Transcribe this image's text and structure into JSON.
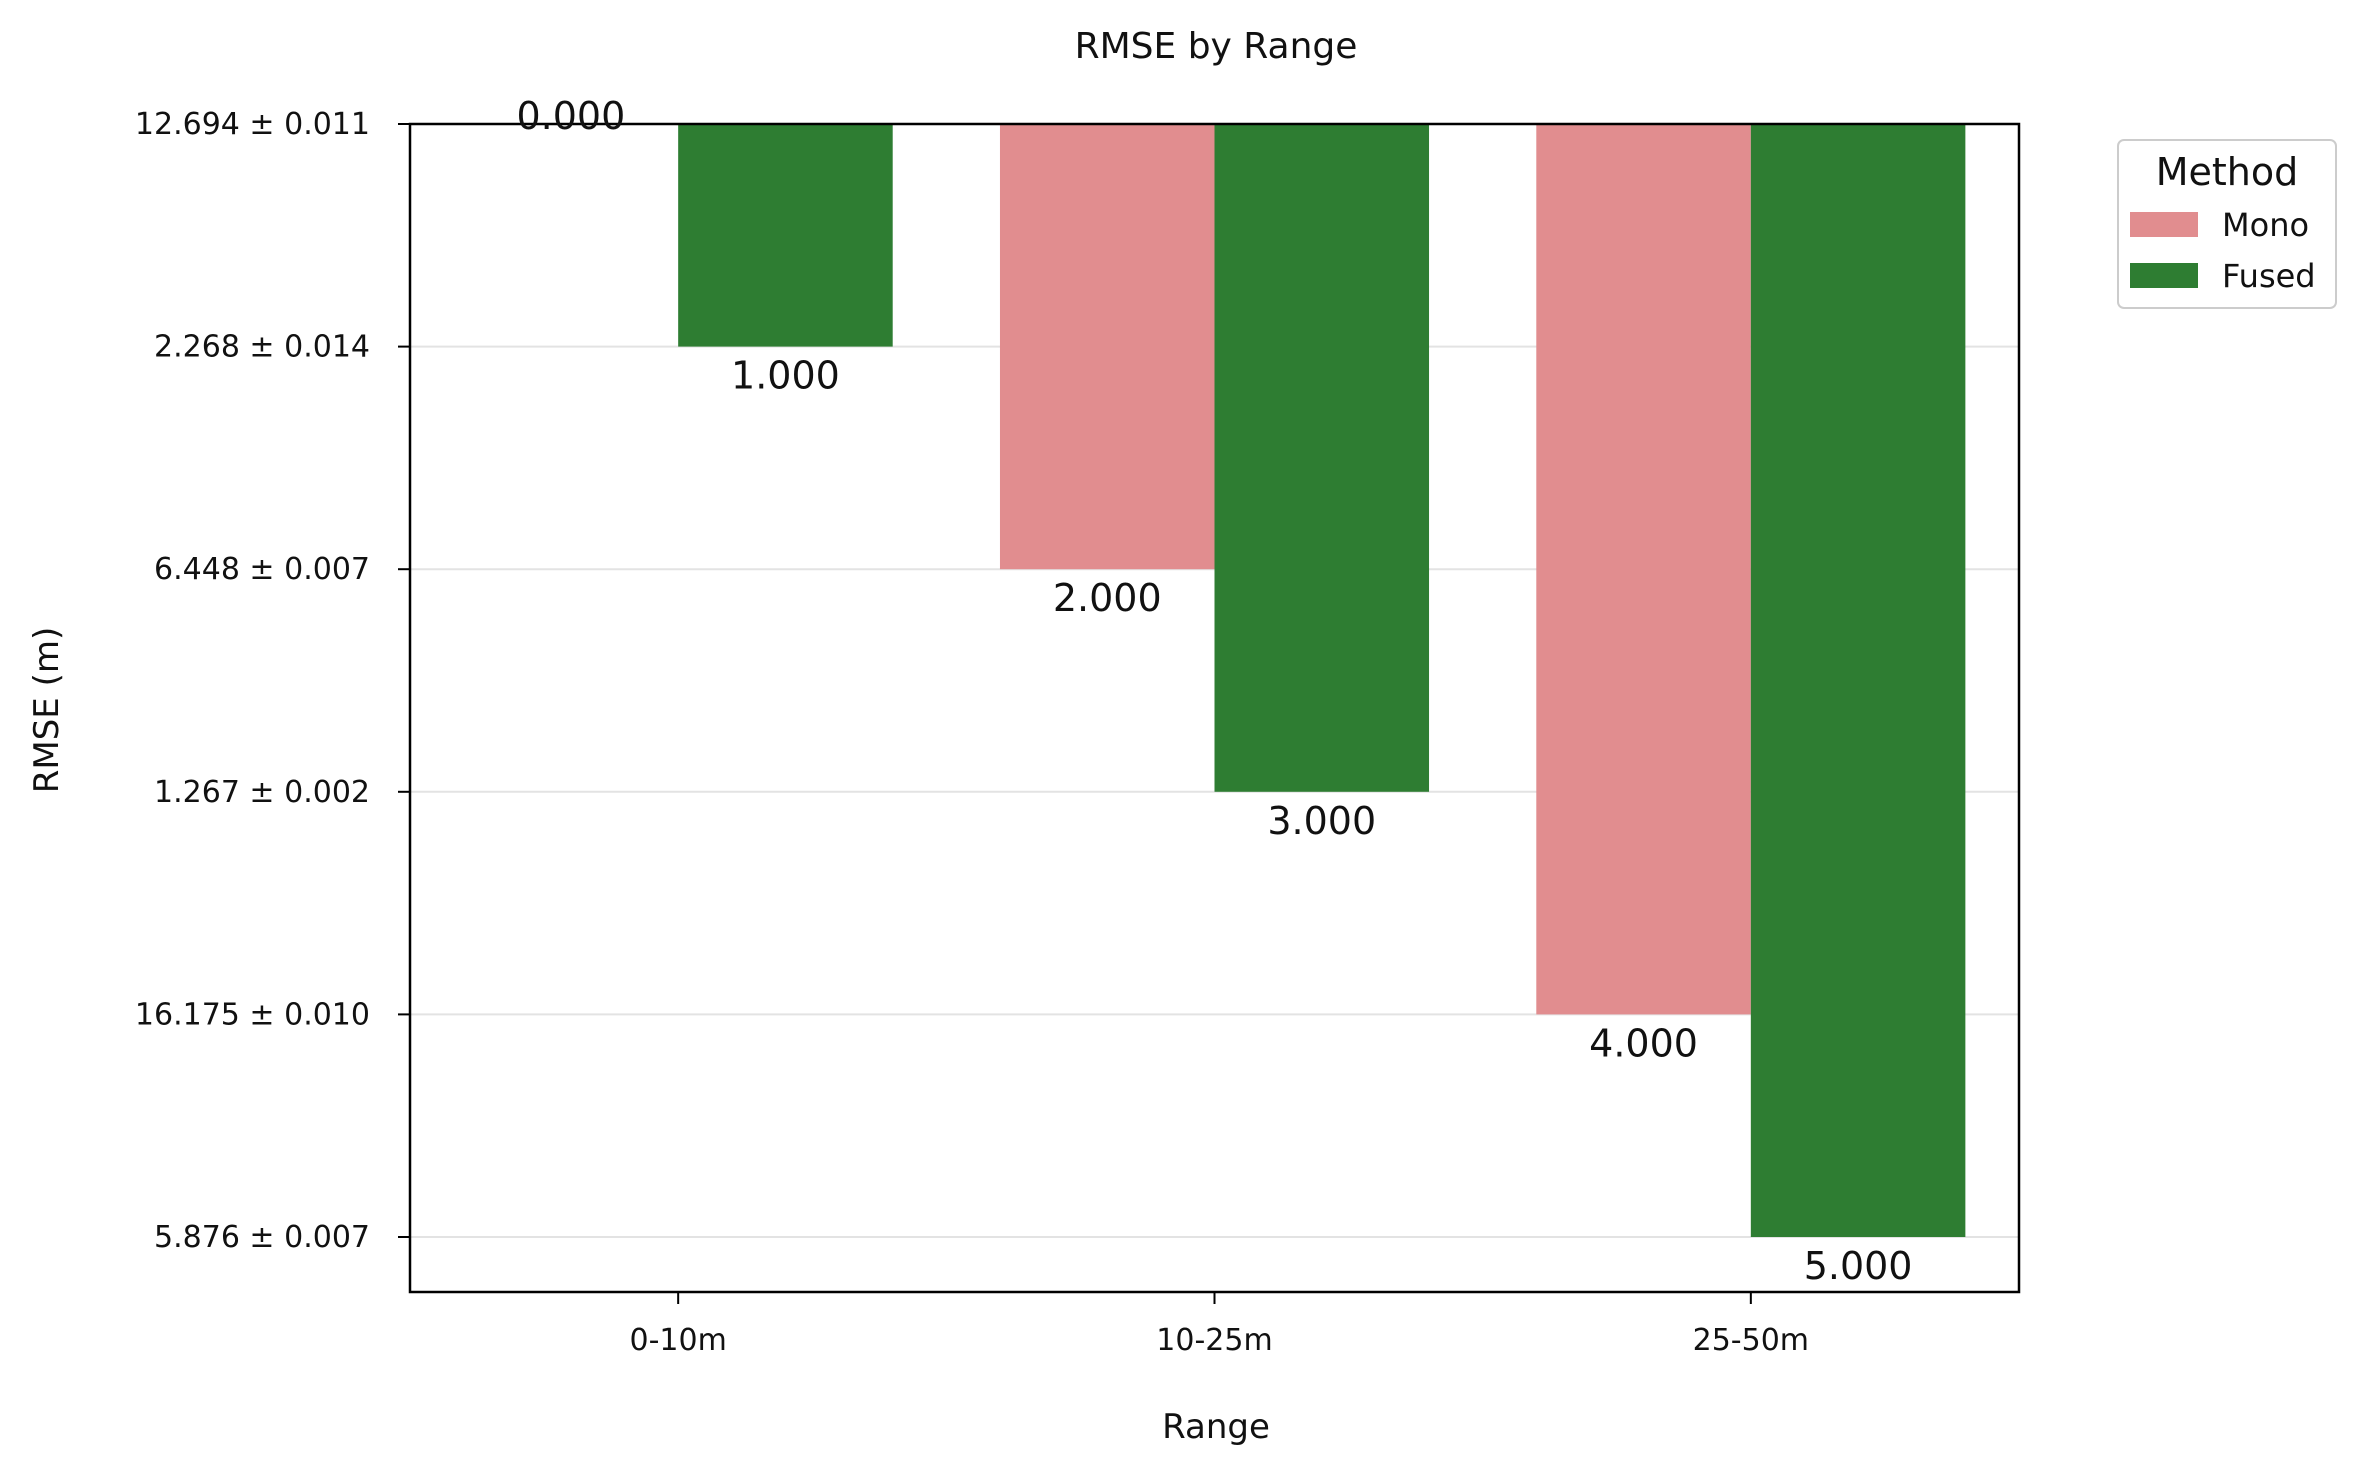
{
  "chart_data": {
    "type": "bar",
    "title": "RMSE by Range",
    "xlabel": "Range",
    "ylabel": "RMSE (m)",
    "categories": [
      "0-10m",
      "10-25m",
      "25-50m"
    ],
    "y_tick_labels": [
      "12.694 ± 0.011",
      "2.268 ± 0.014",
      "6.448 ± 0.007",
      "1.267 ± 0.002",
      "16.175 ± 0.010",
      "5.876 ± 0.007"
    ],
    "y_tick_positions": [
      0,
      1,
      2,
      3,
      4,
      5
    ],
    "ylim": [
      0,
      5.25
    ],
    "y_inverted": true,
    "grid": "horizontal",
    "legend": {
      "title": "Method",
      "placement": "outside-top-right"
    },
    "series": [
      {
        "name": "Mono",
        "color": "#e18d8f",
        "values": [
          0,
          2,
          4
        ],
        "labels": [
          "0.000",
          "2.000",
          "4.000"
        ]
      },
      {
        "name": "Fused",
        "color": "#2e7d32",
        "values": [
          1,
          3,
          5
        ],
        "labels": [
          "1.000",
          "3.000",
          "5.000"
        ]
      }
    ]
  }
}
